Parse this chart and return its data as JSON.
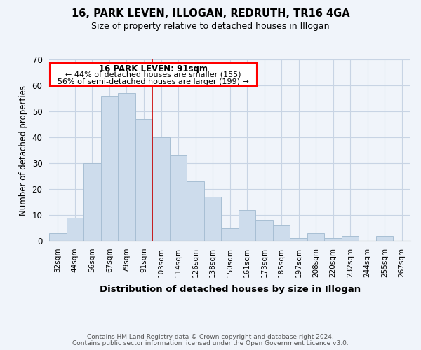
{
  "title": "16, PARK LEVEN, ILLOGAN, REDRUTH, TR16 4GA",
  "subtitle": "Size of property relative to detached houses in Illogan",
  "xlabel": "Distribution of detached houses by size in Illogan",
  "ylabel": "Number of detached properties",
  "footer1": "Contains HM Land Registry data © Crown copyright and database right 2024.",
  "footer2": "Contains public sector information licensed under the Open Government Licence v3.0.",
  "categories": [
    "32sqm",
    "44sqm",
    "56sqm",
    "67sqm",
    "79sqm",
    "91sqm",
    "103sqm",
    "114sqm",
    "126sqm",
    "138sqm",
    "150sqm",
    "161sqm",
    "173sqm",
    "185sqm",
    "197sqm",
    "208sqm",
    "220sqm",
    "232sqm",
    "244sqm",
    "255sqm",
    "267sqm"
  ],
  "values": [
    3,
    9,
    30,
    56,
    57,
    47,
    40,
    33,
    23,
    17,
    5,
    12,
    8,
    6,
    1,
    3,
    1,
    2,
    0,
    2,
    0
  ],
  "bar_color": "#cddcec",
  "bar_edge_color": "#a8bfd4",
  "red_line_index": 5,
  "annotation_title": "16 PARK LEVEN: 91sqm",
  "annotation_line1": "← 44% of detached houses are smaller (155)",
  "annotation_line2": "56% of semi-detached houses are larger (199) →",
  "ylim": [
    0,
    70
  ],
  "yticks": [
    0,
    10,
    20,
    30,
    40,
    50,
    60,
    70
  ],
  "background_color": "#f0f4fa",
  "grid_color": "#c8d4e4"
}
